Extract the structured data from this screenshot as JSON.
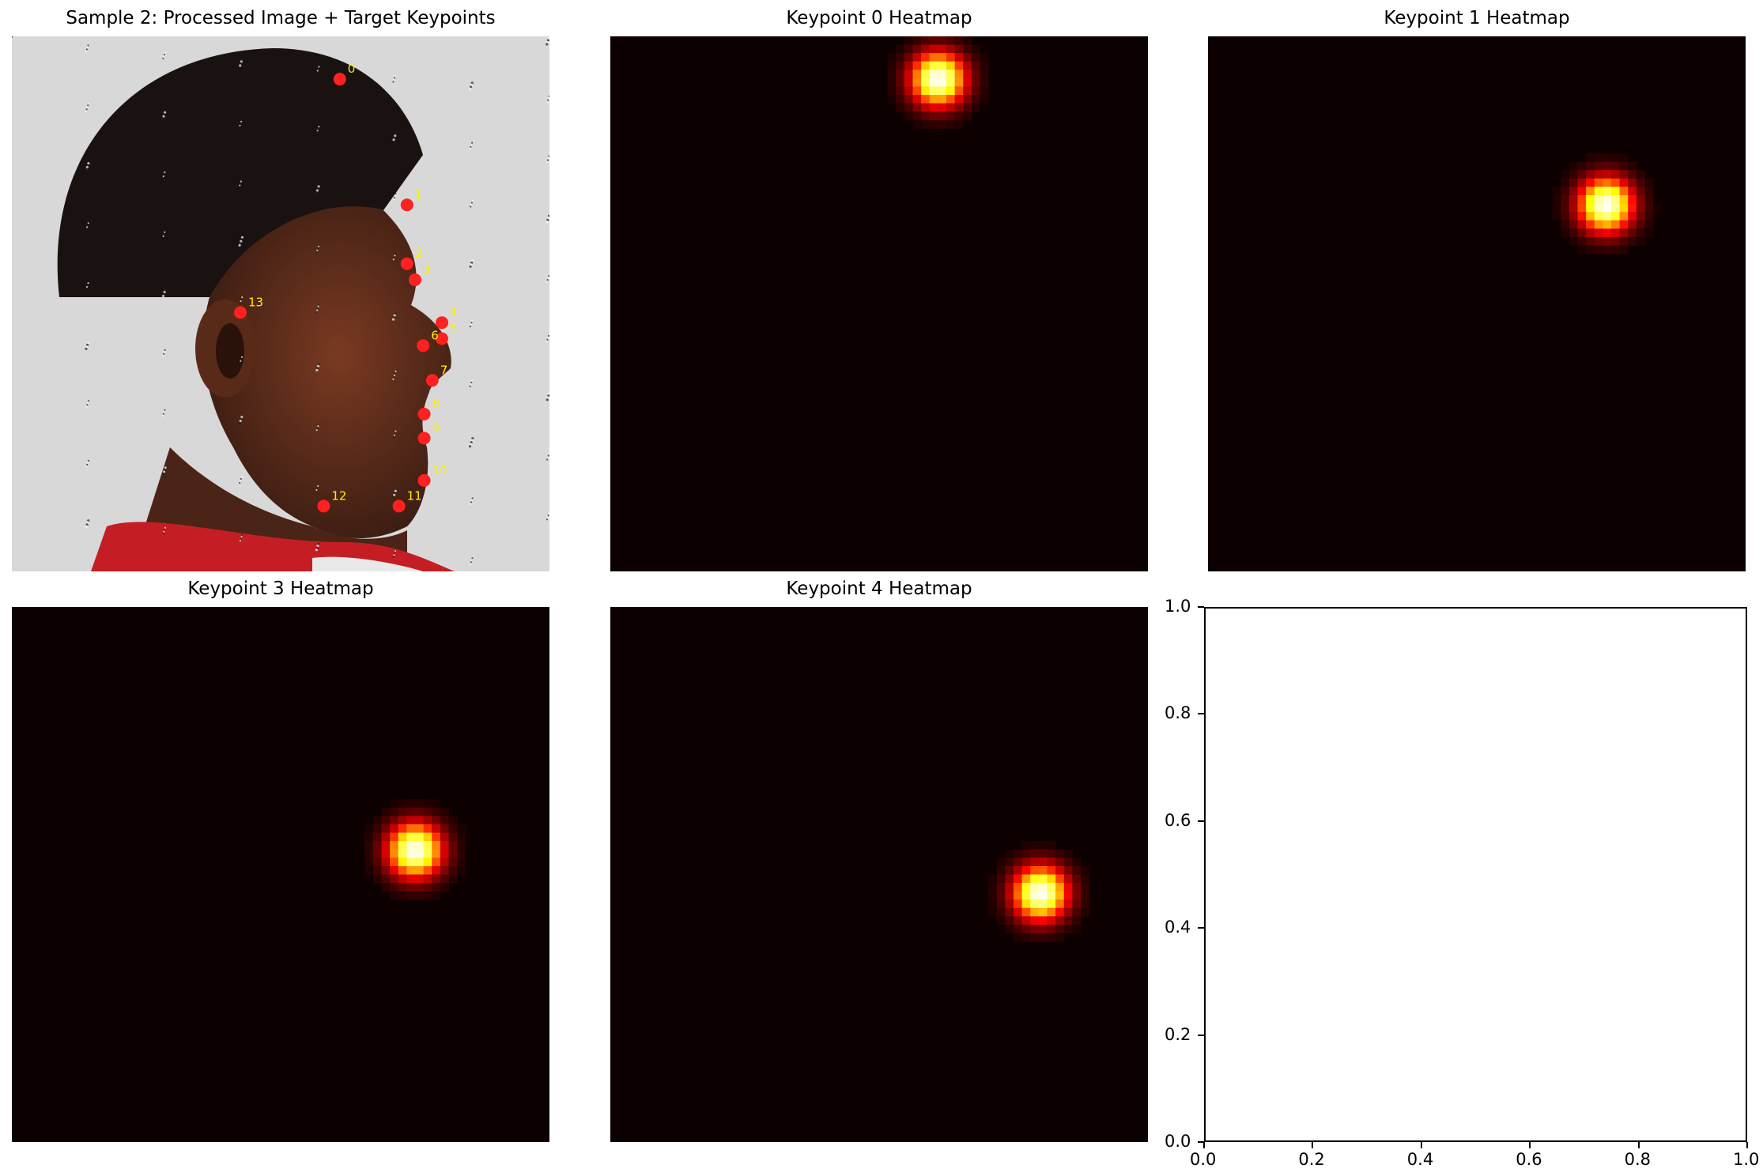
{
  "figure": {
    "photo_title": "Sample 2: Processed Image + Target Keypoints",
    "keypoint_labels": [
      "0",
      "1",
      "2",
      "3",
      "4",
      "5",
      "6",
      "7",
      "8",
      "9",
      "10",
      "11",
      "12",
      "13"
    ]
  },
  "chart_data": [
    {
      "type": "scatter",
      "title": "Sample 2: Processed Image + Target Keypoints",
      "image": "photo",
      "points": [
        {
          "label": "0",
          "x": 0.61,
          "y": 0.08
        },
        {
          "label": "1",
          "x": 0.735,
          "y": 0.315
        },
        {
          "label": "2",
          "x": 0.735,
          "y": 0.425
        },
        {
          "label": "3",
          "x": 0.75,
          "y": 0.455
        },
        {
          "label": "4",
          "x": 0.8,
          "y": 0.535
        },
        {
          "label": "5",
          "x": 0.8,
          "y": 0.565
        },
        {
          "label": "6",
          "x": 0.765,
          "y": 0.578
        },
        {
          "label": "7",
          "x": 0.782,
          "y": 0.643
        },
        {
          "label": "8",
          "x": 0.767,
          "y": 0.706
        },
        {
          "label": "9",
          "x": 0.767,
          "y": 0.751
        },
        {
          "label": "10",
          "x": 0.767,
          "y": 0.83
        },
        {
          "label": "11",
          "x": 0.72,
          "y": 0.878
        },
        {
          "label": "12",
          "x": 0.58,
          "y": 0.878
        },
        {
          "label": "13",
          "x": 0.425,
          "y": 0.516
        }
      ],
      "marker_color": "#ff2020",
      "label_color": "#ffee00"
    },
    {
      "type": "heatmap",
      "title": "Keypoint 0 Heatmap",
      "peak": {
        "x": 0.61,
        "y": 0.08
      }
    },
    {
      "type": "heatmap",
      "title": "Keypoint 1 Heatmap",
      "peak": {
        "x": 0.74,
        "y": 0.315
      }
    },
    {
      "type": "heatmap",
      "title": "Keypoint 3 Heatmap",
      "peak": {
        "x": 0.75,
        "y": 0.455
      }
    },
    {
      "type": "heatmap",
      "title": "Keypoint 4 Heatmap",
      "peak": {
        "x": 0.8,
        "y": 0.535
      }
    },
    {
      "type": "line",
      "title": "",
      "xlim": [
        0.0,
        1.0
      ],
      "ylim": [
        0.0,
        1.0
      ],
      "xticks": [
        "0.0",
        "0.2",
        "0.4",
        "0.6",
        "0.8",
        "1.0"
      ],
      "yticks": [
        "0.0",
        "0.2",
        "0.4",
        "0.6",
        "0.8",
        "1.0"
      ],
      "series": []
    }
  ],
  "colors": {
    "heat_bg": "#0d0000",
    "heat_peak": "#ffffff",
    "marker": "#ff2020",
    "label": "#ffee00"
  }
}
